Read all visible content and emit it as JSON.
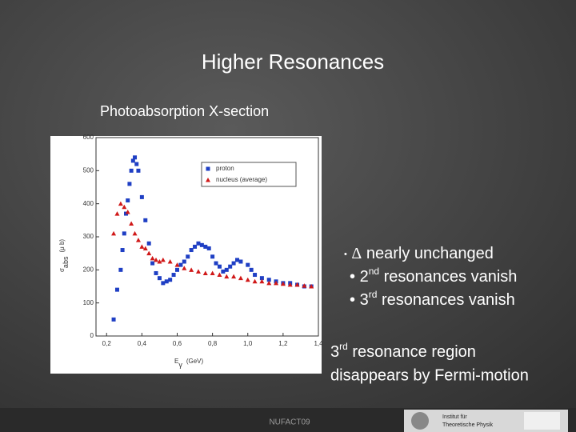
{
  "slide": {
    "title": "Higher Resonances",
    "subtitle": "Photoabsorption X-section",
    "bullets": [
      {
        "bullet": "•",
        "symbol": "Δ",
        "text": "nearly unchanged"
      },
      {
        "bullet": "•",
        "number": "2",
        "suffix": "nd",
        "text": "resonances vanish"
      },
      {
        "bullet": "•",
        "number": "3",
        "suffix": "rd",
        "text": "resonances vanish"
      }
    ],
    "note": {
      "number": "3",
      "suffix": "rd",
      "line1": "resonance region",
      "line2": "disappears by Fermi-motion"
    },
    "footer": "NUFACT09",
    "logo_text": [
      "Institut für",
      "Theoretische Physik"
    ]
  },
  "chart_data": {
    "type": "scatter",
    "x_label": {
      "symbol": "E",
      "subscript": "γ",
      "unit": "(GeV)"
    },
    "y_label": {
      "symbol": "σ",
      "subscript": "abs",
      "unit": "(μ b)"
    },
    "xlim": [
      0.14,
      1.4
    ],
    "ylim": [
      0,
      600
    ],
    "xticks": [
      {
        "value": 0.2,
        "label": "0,2"
      },
      {
        "value": 0.4,
        "label": "0,4"
      },
      {
        "value": 0.6,
        "label": "0,6"
      },
      {
        "value": 0.8,
        "label": "0,8"
      },
      {
        "value": 1.0,
        "label": "1,0"
      },
      {
        "value": 1.2,
        "label": "1,2"
      },
      {
        "value": 1.4,
        "label": "1,4"
      }
    ],
    "yticks": [
      0,
      100,
      200,
      300,
      400,
      500,
      600
    ],
    "legend": "upper right",
    "series": [
      {
        "name": "proton",
        "color": "#1f3fc4",
        "marker": "square",
        "x": [
          0.24,
          0.26,
          0.28,
          0.29,
          0.3,
          0.31,
          0.32,
          0.33,
          0.34,
          0.35,
          0.36,
          0.37,
          0.38,
          0.4,
          0.42,
          0.44,
          0.46,
          0.48,
          0.5,
          0.52,
          0.54,
          0.56,
          0.58,
          0.6,
          0.62,
          0.64,
          0.66,
          0.68,
          0.7,
          0.72,
          0.74,
          0.76,
          0.78,
          0.8,
          0.82,
          0.84,
          0.86,
          0.88,
          0.9,
          0.92,
          0.94,
          0.96,
          1.0,
          1.02,
          1.04,
          1.08,
          1.12,
          1.16,
          1.2,
          1.24,
          1.28,
          1.32,
          1.36
        ],
        "values": [
          50,
          140,
          200,
          260,
          310,
          370,
          410,
          460,
          500,
          530,
          540,
          520,
          500,
          420,
          350,
          280,
          220,
          190,
          175,
          160,
          165,
          170,
          185,
          200,
          215,
          225,
          240,
          260,
          270,
          280,
          275,
          270,
          265,
          240,
          220,
          210,
          195,
          200,
          210,
          220,
          230,
          225,
          215,
          200,
          185,
          175,
          170,
          165,
          160,
          160,
          155,
          150,
          150
        ]
      },
      {
        "name": "nucleus (average)",
        "color": "#d01818",
        "marker": "triangle",
        "x": [
          0.24,
          0.26,
          0.28,
          0.3,
          0.32,
          0.34,
          0.36,
          0.38,
          0.4,
          0.42,
          0.44,
          0.46,
          0.48,
          0.5,
          0.52,
          0.56,
          0.6,
          0.64,
          0.68,
          0.72,
          0.76,
          0.8,
          0.84,
          0.88,
          0.92,
          0.96,
          1.0,
          1.04,
          1.08,
          1.12,
          1.16,
          1.2,
          1.24,
          1.28,
          1.32,
          1.36
        ],
        "values": [
          310,
          370,
          400,
          390,
          375,
          340,
          310,
          290,
          270,
          265,
          250,
          235,
          230,
          225,
          230,
          225,
          215,
          205,
          200,
          195,
          190,
          190,
          185,
          180,
          180,
          175,
          170,
          165,
          165,
          160,
          160,
          158,
          155,
          155,
          152,
          150
        ]
      }
    ]
  }
}
